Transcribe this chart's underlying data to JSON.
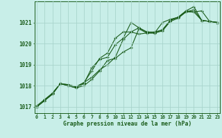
{
  "xlabel": "Graphe pression niveau de la mer (hPa)",
  "bg_color": "#c8eee8",
  "line_color": "#1a5c1a",
  "grid_color": "#a8d4cc",
  "ylim": [
    1016.7,
    1022.0
  ],
  "xlim": [
    -0.3,
    23.3
  ],
  "yticks": [
    1017,
    1018,
    1019,
    1020,
    1021
  ],
  "xticks": [
    0,
    1,
    2,
    3,
    4,
    5,
    6,
    7,
    8,
    9,
    10,
    11,
    12,
    13,
    14,
    15,
    16,
    17,
    18,
    19,
    20,
    21,
    22,
    23
  ],
  "series": [
    [
      1017.0,
      1017.3,
      1017.6,
      1018.1,
      1018.0,
      1017.9,
      1018.0,
      1018.3,
      1018.7,
      1019.2,
      1019.3,
      1019.6,
      1019.8,
      1020.7,
      1020.5,
      1020.5,
      1021.0,
      1021.15,
      1021.25,
      1021.5,
      1021.5,
      1021.1,
      1021.05,
      1021.0
    ],
    [
      1017.05,
      1017.35,
      1017.65,
      1018.1,
      1018.05,
      1017.95,
      1018.15,
      1018.4,
      1018.75,
      1019.0,
      1019.35,
      1020.2,
      1020.55,
      1020.45,
      1020.5,
      1020.5,
      1020.6,
      1021.05,
      1021.2,
      1021.5,
      1021.6,
      1021.1,
      1021.05,
      1021.0
    ],
    [
      1017.0,
      1017.3,
      1017.6,
      1018.1,
      1018.0,
      1017.9,
      1018.1,
      1018.85,
      1019.25,
      1019.35,
      1019.95,
      1020.25,
      1021.0,
      1020.75,
      1020.55,
      1020.5,
      1020.65,
      1021.1,
      1021.25,
      1021.55,
      1021.75,
      1021.1,
      1021.05,
      1021.0
    ],
    [
      1017.0,
      1017.3,
      1017.65,
      1018.1,
      1018.05,
      1017.95,
      1018.15,
      1018.7,
      1019.3,
      1019.55,
      1020.25,
      1020.55,
      1020.55,
      1020.75,
      1020.55,
      1020.55,
      1020.65,
      1021.1,
      1021.25,
      1021.55,
      1021.5,
      1021.55,
      1021.05,
      1021.0
    ]
  ]
}
